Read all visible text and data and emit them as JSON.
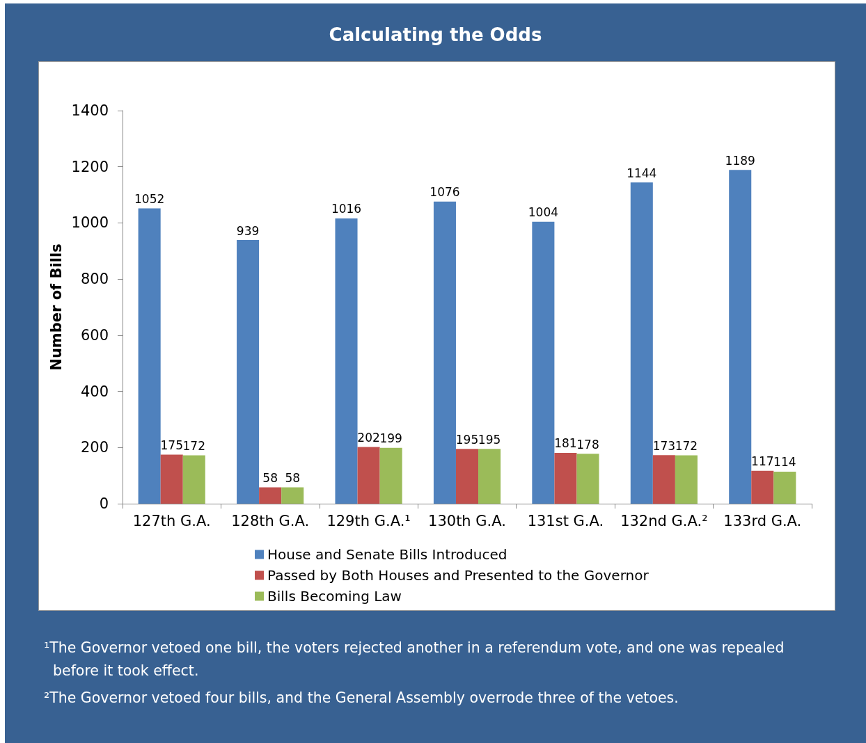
{
  "chart_data": {
    "type": "bar",
    "title": "Calculating the Odds",
    "ylabel": "Number of Bills",
    "categories": [
      "127th G.A.",
      "128th G.A.",
      "129th G.A.¹",
      "130th G.A.",
      "131st G.A.",
      "132nd G.A.²",
      "133rd G.A."
    ],
    "series": [
      {
        "name": "House and Senate Bills Introduced",
        "color": "#4f81bd",
        "values": [
          1052,
          939,
          1016,
          1076,
          1004,
          1144,
          1189
        ]
      },
      {
        "name": "Passed by Both Houses and Presented to the Governor",
        "color": "#c0504d",
        "values": [
          175,
          58,
          202,
          195,
          181,
          173,
          117
        ]
      },
      {
        "name": "Bills Becoming Law",
        "color": "#9bbb59",
        "values": [
          172,
          58,
          199,
          195,
          178,
          172,
          114
        ]
      }
    ],
    "ylim": [
      0,
      1400
    ],
    "yticks": [
      0,
      200,
      400,
      600,
      800,
      1000,
      1200,
      1400
    ],
    "grid": false,
    "legend": "bottom",
    "data_labels": true,
    "annotations": [
      "¹The Governor vetoed one bill, the voters rejected another in a referendum vote, and one was repealed before it took effect.",
      "²The Governor vetoed four bills, and the General Assembly overrode three of the vetoes."
    ]
  }
}
